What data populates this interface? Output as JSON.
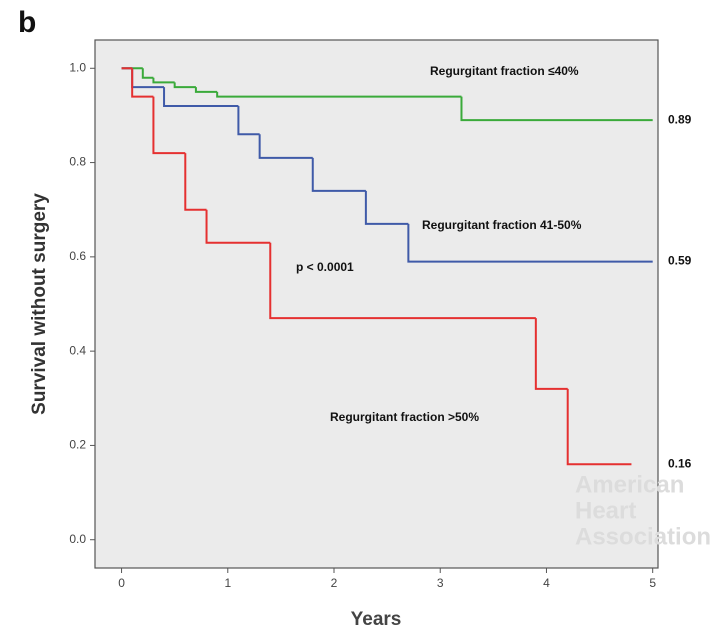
{
  "chart_data": {
    "type": "step",
    "panel_label": "b",
    "xlabel": "Years",
    "ylabel": "Survival without surgery",
    "annotation": "p < 0.0001",
    "watermark": [
      "American",
      "Heart",
      "Association"
    ],
    "xlim": [
      -0.25,
      5.05
    ],
    "ylim": [
      -0.06,
      1.06
    ],
    "xticks": [
      0,
      1,
      2,
      3,
      4,
      5
    ],
    "yticks": [
      {
        "value": 0,
        "label": "0.0"
      },
      0.2,
      0.4,
      0.6,
      0.8,
      {
        "value": 1,
        "label": "1.0"
      }
    ],
    "series": [
      {
        "name": "Regurgitant fraction ≤40%",
        "color": "#3aaa3a",
        "x": [
          0,
          0.2,
          0.3,
          0.5,
          0.7,
          0.9,
          3.2,
          5.0
        ],
        "values": [
          1.0,
          0.98,
          0.97,
          0.96,
          0.95,
          0.94,
          0.89,
          0.89
        ]
      },
      {
        "name": "Regurgitant fraction 41-50%",
        "color": "#3f5aa8",
        "x": [
          0,
          0.1,
          0.4,
          1.1,
          1.3,
          1.8,
          2.3,
          2.7,
          5.0
        ],
        "values": [
          1.0,
          0.96,
          0.92,
          0.86,
          0.81,
          0.74,
          0.67,
          0.59,
          0.59
        ]
      },
      {
        "name": "Regurgitant fraction >50%",
        "color": "#e53030",
        "x": [
          0,
          0.1,
          0.3,
          0.6,
          0.8,
          1.4,
          3.9,
          4.2,
          4.8
        ],
        "values": [
          1.0,
          0.94,
          0.82,
          0.7,
          0.63,
          0.47,
          0.32,
          0.16,
          0.16
        ]
      }
    ]
  }
}
